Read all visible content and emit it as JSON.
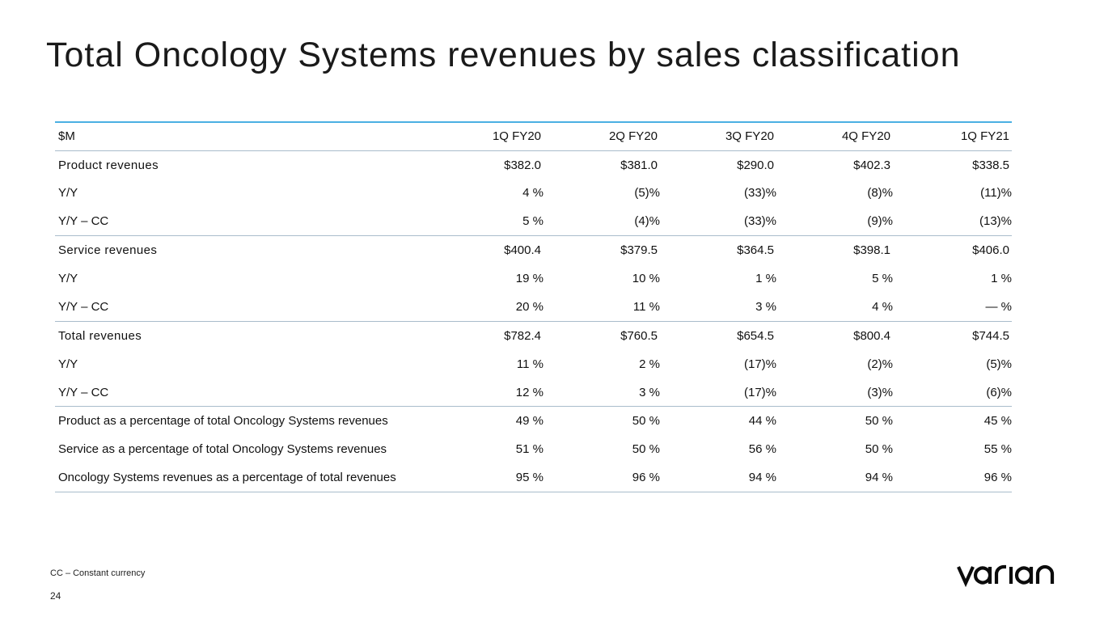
{
  "slide": {
    "title": "Total Oncology Systems revenues by sales classification",
    "footnote": "CC – Constant currency",
    "page_number": "24",
    "logo_text": "varian"
  },
  "table": {
    "header": [
      "$M",
      "1Q FY20",
      "2Q FY20",
      "3Q FY20",
      "4Q FY20",
      "1Q FY21"
    ],
    "rows": [
      {
        "label": "Product revenues",
        "values": [
          "$382.0",
          "$381.0",
          "$290.0",
          "$402.3",
          "$338.5"
        ]
      },
      {
        "label": "Y/Y",
        "values": [
          "4 %",
          "(5)%",
          "(33)%",
          "(8)%",
          "(11)%"
        ]
      },
      {
        "label": "Y/Y – CC",
        "values": [
          "5 %",
          "(4)%",
          "(33)%",
          "(9)%",
          "(13)%"
        ]
      },
      {
        "label": "Service revenues",
        "values": [
          "$400.4",
          "$379.5",
          "$364.5",
          "$398.1",
          "$406.0"
        ]
      },
      {
        "label": "Y/Y",
        "values": [
          "19 %",
          "10 %",
          "1 %",
          "5 %",
          "1 %"
        ]
      },
      {
        "label": "Y/Y – CC",
        "values": [
          "20 %",
          "11 %",
          "3 %",
          "4 %",
          "— %"
        ]
      },
      {
        "label": "Total revenues",
        "values": [
          "$782.4",
          "$760.5",
          "$654.5",
          "$800.4",
          "$744.5"
        ]
      },
      {
        "label": "Y/Y",
        "values": [
          "11 %",
          "2 %",
          "(17)%",
          "(2)%",
          "(5)%"
        ]
      },
      {
        "label": "Y/Y – CC",
        "values": [
          "12 %",
          "3 %",
          "(17)%",
          "(3)%",
          "(6)%"
        ]
      },
      {
        "label": "Product as a percentage of total Oncology Systems revenues",
        "values": [
          "49 %",
          "50 %",
          "44 %",
          "50 %",
          "45 %"
        ]
      },
      {
        "label": "Service as a percentage of total Oncology Systems revenues",
        "values": [
          "51 %",
          "50 %",
          "56 %",
          "50 %",
          "55 %"
        ]
      },
      {
        "label": "Oncology Systems revenues as a percentage of total revenues",
        "values": [
          "95 %",
          "96 %",
          "94 %",
          "94 %",
          "96 %"
        ]
      }
    ]
  }
}
